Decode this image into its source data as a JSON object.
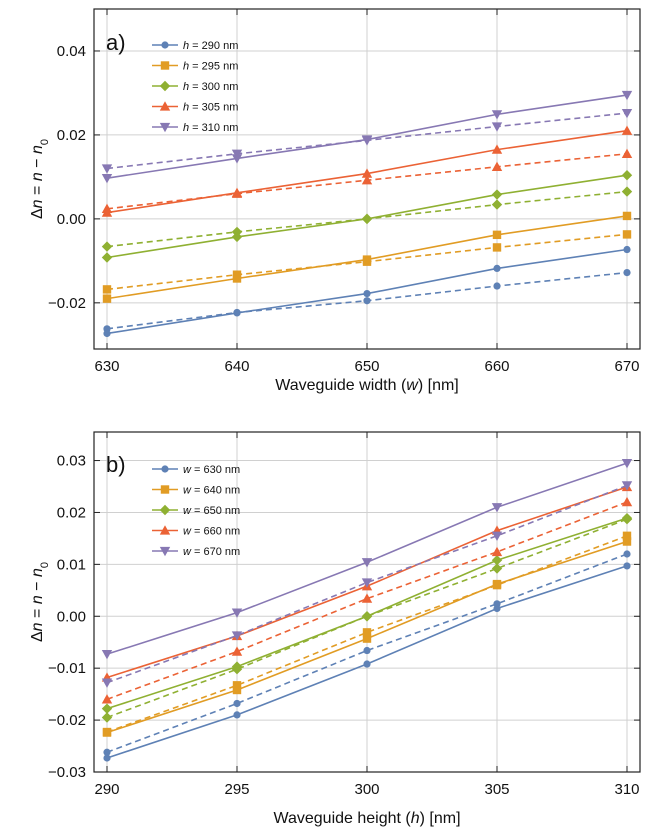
{
  "chart_data": [
    {
      "type": "line",
      "panel_label": "a)",
      "xlabel_parts": [
        "Waveguide width (",
        "w",
        ") [nm]"
      ],
      "ylabel_parts": [
        "Δ",
        "n",
        " = ",
        "n",
        " − ",
        "n",
        "0"
      ],
      "x": [
        630,
        640,
        650,
        660,
        670
      ],
      "xticks": [
        "630",
        "640",
        "650",
        "660",
        "670"
      ],
      "xlim": [
        629,
        671
      ],
      "ylim": [
        -0.031,
        0.05
      ],
      "yticks": [
        -0.02,
        0.0,
        0.02,
        0.04
      ],
      "ytick_labels": [
        "−0.02",
        "0.00",
        "0.02",
        "0.04"
      ],
      "grid": true,
      "legend_position": "top-left",
      "legend_var": "h",
      "series": [
        {
          "name": "h = 290 nm",
          "legend_value": " = 290 nm",
          "color": "#5e81b5",
          "marker": "circle",
          "values": [
            -0.0273,
            -0.0224,
            -0.0178,
            -0.0118,
            -0.0073
          ],
          "dashed_values": [
            -0.0262,
            -0.0223,
            -0.0195,
            -0.016,
            -0.0128
          ]
        },
        {
          "name": "h = 295 nm",
          "legend_value": " = 295 nm",
          "color": "#e19c24",
          "marker": "square",
          "values": [
            -0.019,
            -0.0142,
            -0.0097,
            -0.0038,
            0.0007
          ],
          "dashed_values": [
            -0.0168,
            -0.0133,
            -0.0102,
            -0.0068,
            -0.0037
          ]
        },
        {
          "name": "h = 300 nm",
          "legend_value": " = 300 nm",
          "color": "#8fb032",
          "marker": "diamond",
          "values": [
            -0.0092,
            -0.0043,
            0.0,
            0.0058,
            0.0104
          ],
          "dashed_values": [
            -0.0066,
            -0.0031,
            0.0,
            0.0034,
            0.0065
          ]
        },
        {
          "name": "h = 305 nm",
          "legend_value": " = 305 nm",
          "color": "#eb6235",
          "marker": "triangle-up",
          "values": [
            0.0015,
            0.0062,
            0.0108,
            0.0165,
            0.021
          ],
          "dashed_values": [
            0.0024,
            0.006,
            0.0092,
            0.0124,
            0.0155
          ]
        },
        {
          "name": "h = 310 nm",
          "legend_value": " = 310 nm",
          "color": "#8778b3",
          "marker": "triangle-down",
          "values": [
            0.0097,
            0.0144,
            0.0189,
            0.0249,
            0.0295
          ],
          "dashed_values": [
            0.012,
            0.0155,
            0.0187,
            0.022,
            0.0252
          ]
        }
      ]
    },
    {
      "type": "line",
      "panel_label": "b)",
      "xlabel_parts": [
        "Waveguide height (",
        "h",
        ") [nm]"
      ],
      "ylabel_parts": [
        "Δ",
        "n",
        " = ",
        "n",
        " − ",
        "n",
        "0"
      ],
      "x": [
        290,
        295,
        300,
        305,
        310
      ],
      "xticks": [
        "290",
        "295",
        "300",
        "305",
        "310"
      ],
      "xlim": [
        289.5,
        310.5
      ],
      "ylim": [
        -0.03,
        0.0355
      ],
      "yticks": [
        -0.03,
        -0.02,
        -0.01,
        0.0,
        0.01,
        0.02,
        0.03
      ],
      "ytick_labels": [
        "−0.03",
        "−0.02",
        "−0.01",
        "0.00",
        "0.01",
        "0.02",
        "0.03"
      ],
      "grid": true,
      "legend_position": "top-left",
      "legend_var": "w",
      "series": [
        {
          "name": "w = 630 nm",
          "legend_value": " = 630 nm",
          "color": "#5e81b5",
          "marker": "circle",
          "values": [
            -0.0273,
            -0.019,
            -0.0092,
            0.0015,
            0.0097
          ],
          "dashed_values": [
            -0.0262,
            -0.0168,
            -0.0066,
            0.0024,
            0.012
          ]
        },
        {
          "name": "w = 640 nm",
          "legend_value": " = 640 nm",
          "color": "#e19c24",
          "marker": "square",
          "values": [
            -0.0224,
            -0.0142,
            -0.0043,
            0.0062,
            0.0144
          ],
          "dashed_values": [
            -0.0223,
            -0.0133,
            -0.0031,
            0.006,
            0.0155
          ]
        },
        {
          "name": "w = 650 nm",
          "legend_value": " = 650 nm",
          "color": "#8fb032",
          "marker": "diamond",
          "values": [
            -0.0178,
            -0.0097,
            0.0,
            0.0108,
            0.0189
          ],
          "dashed_values": [
            -0.0195,
            -0.0102,
            0.0,
            0.0092,
            0.0187
          ]
        },
        {
          "name": "w = 660 nm",
          "legend_value": " = 660 nm",
          "color": "#eb6235",
          "marker": "triangle-up",
          "values": [
            -0.0118,
            -0.0038,
            0.0058,
            0.0165,
            0.0249
          ],
          "dashed_values": [
            -0.016,
            -0.0068,
            0.0034,
            0.0124,
            0.022
          ]
        },
        {
          "name": "w = 670 nm",
          "legend_value": " = 670 nm",
          "color": "#8778b3",
          "marker": "triangle-down",
          "values": [
            -0.0073,
            0.0007,
            0.0104,
            0.021,
            0.0295
          ],
          "dashed_values": [
            -0.0128,
            -0.0037,
            0.0065,
            0.0155,
            0.0252
          ]
        }
      ]
    }
  ]
}
